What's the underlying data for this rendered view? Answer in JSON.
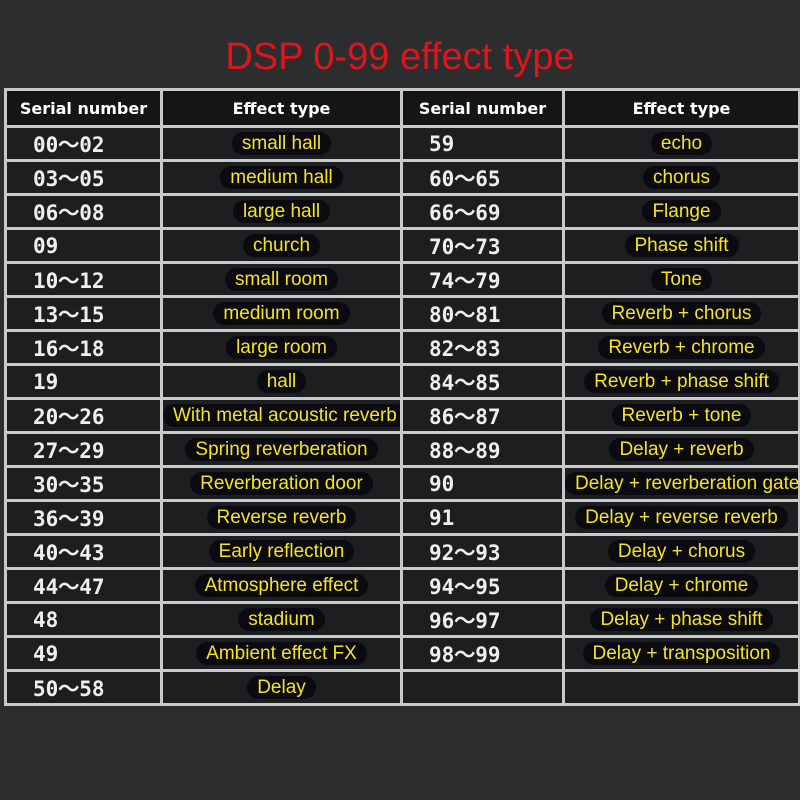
{
  "title": "DSP 0-99 effect type",
  "headers": [
    "Serial number",
    "Effect type",
    "Serial number",
    "Effect type"
  ],
  "rows": [
    [
      [
        "00～02",
        "small hall"
      ],
      [
        "59",
        "echo"
      ]
    ],
    [
      [
        "03～05",
        "medium hall"
      ],
      [
        "60～65",
        "chorus"
      ]
    ],
    [
      [
        "06～08",
        "large hall"
      ],
      [
        "66～69",
        "Flange"
      ]
    ],
    [
      [
        "09",
        "church"
      ],
      [
        "70～73",
        "Phase shift"
      ]
    ],
    [
      [
        "10～12",
        "small room"
      ],
      [
        "74～79",
        "Tone"
      ]
    ],
    [
      [
        "13～15",
        "medium room"
      ],
      [
        "80～81",
        "Reverb + chorus"
      ]
    ],
    [
      [
        "16～18",
        "large room"
      ],
      [
        "82～83",
        "Reverb + chrome"
      ]
    ],
    [
      [
        "19",
        "hall"
      ],
      [
        "84～85",
        "Reverb + phase shift"
      ]
    ],
    [
      [
        "20～26",
        "With metal acoustic reverb"
      ],
      [
        "86～87",
        "Reverb + tone"
      ]
    ],
    [
      [
        "27～29",
        "Spring reverberation"
      ],
      [
        "88～89",
        "Delay + reverb"
      ]
    ],
    [
      [
        "30～35",
        "Reverberation door"
      ],
      [
        "90",
        "Delay + reverberation gate"
      ]
    ],
    [
      [
        "36～39",
        "Reverse reverb"
      ],
      [
        "91",
        "Delay + reverse reverb"
      ]
    ],
    [
      [
        "40～43",
        "Early reflection"
      ],
      [
        "92～93",
        "Delay + chorus"
      ]
    ],
    [
      [
        "44～47",
        "Atmosphere effect"
      ],
      [
        "94～95",
        "Delay + chrome"
      ]
    ],
    [
      [
        "48",
        "stadium"
      ],
      [
        "96～97",
        "Delay + phase shift"
      ]
    ],
    [
      [
        "49",
        "Ambient effect FX"
      ],
      [
        "98～99",
        "Delay + transposition"
      ]
    ],
    [
      [
        "50～58",
        "Delay"
      ],
      [
        "",
        ""
      ]
    ]
  ]
}
